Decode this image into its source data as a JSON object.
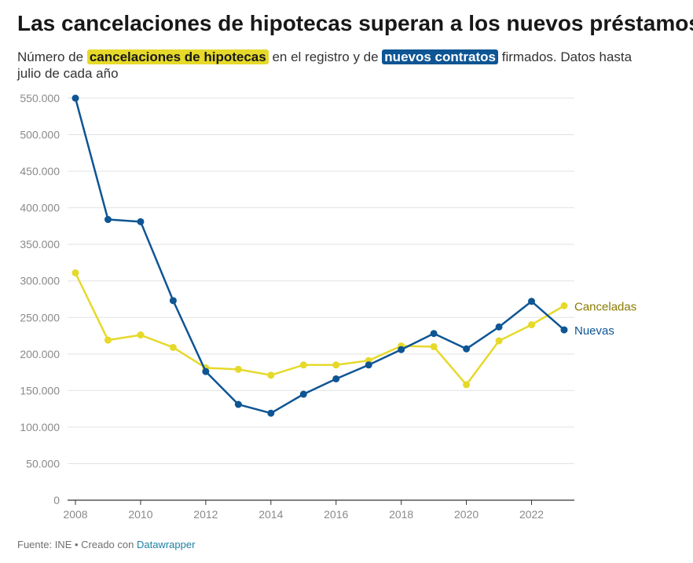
{
  "title": "Las cancelaciones de hipotecas superan a los nuevos préstamos",
  "subtitle": {
    "part1": "Número de ",
    "highlight1": "cancelaciones de hipotecas",
    "part2": " en el registro y de ",
    "highlight2": "nuevos contratos",
    "part3": " firmados. Datos hasta julio de cada año"
  },
  "footer": {
    "source": "Fuente: INE • Creado con ",
    "link": "Datawrapper"
  },
  "colors": {
    "canceladas": "#e6d92a",
    "canceladas_label": "#8a7a00",
    "nuevas": "#0e5594",
    "grid": "#e3e3e3",
    "axis_text": "#8a8a8a"
  },
  "chart_data": {
    "type": "line",
    "title": "Las cancelaciones de hipotecas superan a los nuevos préstamos",
    "xlabel": "",
    "ylabel": "",
    "x": [
      2008,
      2009,
      2010,
      2011,
      2012,
      2013,
      2014,
      2015,
      2016,
      2017,
      2018,
      2019,
      2020,
      2021,
      2022,
      2023
    ],
    "xticks": [
      "2008",
      "2010",
      "2012",
      "2014",
      "2016",
      "2018",
      "2020",
      "2022"
    ],
    "yticks": [
      "0",
      "50.000",
      "100.000",
      "150.000",
      "200.000",
      "250.000",
      "300.000",
      "350.000",
      "400.000",
      "450.000",
      "500.000",
      "550.000"
    ],
    "ylim": [
      0,
      550000
    ],
    "grid": true,
    "series": [
      {
        "name": "Nuevas",
        "color": "#0e5594",
        "values": [
          550000,
          384000,
          381000,
          273000,
          176000,
          131000,
          119000,
          145000,
          166000,
          185000,
          206000,
          228000,
          207000,
          237000,
          272000,
          233000
        ]
      },
      {
        "name": "Canceladas",
        "color": "#e6d92a",
        "values": [
          311000,
          219000,
          226000,
          209000,
          181000,
          179000,
          171000,
          185000,
          185000,
          191000,
          211000,
          210000,
          158000,
          218000,
          240000,
          266000
        ]
      }
    ]
  }
}
